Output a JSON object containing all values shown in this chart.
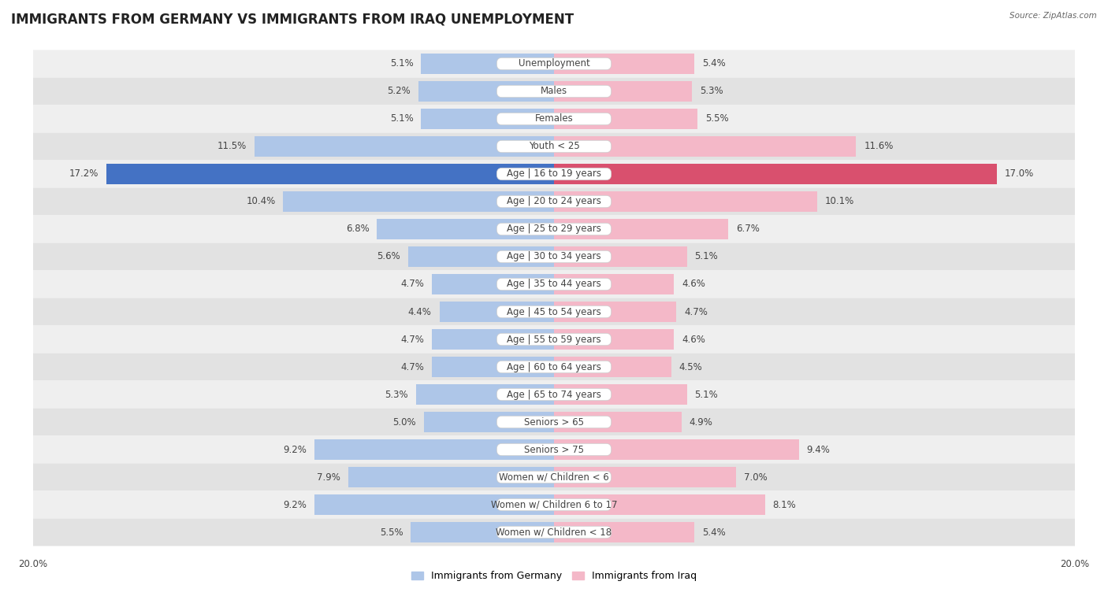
{
  "title": "IMMIGRANTS FROM GERMANY VS IMMIGRANTS FROM IRAQ UNEMPLOYMENT",
  "source": "Source: ZipAtlas.com",
  "categories": [
    "Unemployment",
    "Males",
    "Females",
    "Youth < 25",
    "Age | 16 to 19 years",
    "Age | 20 to 24 years",
    "Age | 25 to 29 years",
    "Age | 30 to 34 years",
    "Age | 35 to 44 years",
    "Age | 45 to 54 years",
    "Age | 55 to 59 years",
    "Age | 60 to 64 years",
    "Age | 65 to 74 years",
    "Seniors > 65",
    "Seniors > 75",
    "Women w/ Children < 6",
    "Women w/ Children 6 to 17",
    "Women w/ Children < 18"
  ],
  "germany_values": [
    5.1,
    5.2,
    5.1,
    11.5,
    17.2,
    10.4,
    6.8,
    5.6,
    4.7,
    4.4,
    4.7,
    4.7,
    5.3,
    5.0,
    9.2,
    7.9,
    9.2,
    5.5
  ],
  "iraq_values": [
    5.4,
    5.3,
    5.5,
    11.6,
    17.0,
    10.1,
    6.7,
    5.1,
    4.6,
    4.7,
    4.6,
    4.5,
    5.1,
    4.9,
    9.4,
    7.0,
    8.1,
    5.4
  ],
  "germany_color": "#aec6e8",
  "iraq_color": "#f4b8c8",
  "germany_highlight_color": "#4472c4",
  "iraq_highlight_color": "#d9506e",
  "highlight_row": 4,
  "xlim": 20.0,
  "bg_light": "#efefef",
  "bg_dark": "#e2e2e2",
  "legend_germany": "Immigrants from Germany",
  "legend_iraq": "Immigrants from Iraq",
  "title_fontsize": 12,
  "label_fontsize": 8.5,
  "value_fontsize": 8.5,
  "axis_label_fontsize": 8.5
}
